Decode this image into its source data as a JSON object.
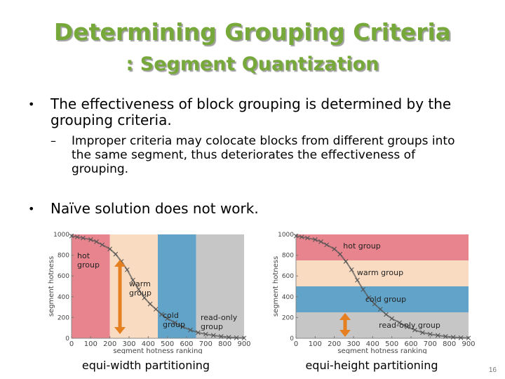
{
  "slide": {
    "title_line1": "Determining Grouping Criteria",
    "title_line2": ": Segment Quantization",
    "bullets": [
      {
        "text": "The effectiveness of block grouping is determined by the grouping criteria.",
        "sub": "Improper criteria may colocate blocks from different groups into the same segment, thus deteriorates the effectiveness of grouping."
      },
      {
        "text": "Naïve solution does not work."
      }
    ],
    "bullet_mark": "•",
    "sub_mark": "–",
    "page_number": "16"
  },
  "chart_data": [
    {
      "type": "scatter",
      "caption": "equi-width partitioning",
      "xlabel": "segment hotness ranking",
      "ylabel": "segment hotness",
      "xlim": [
        0,
        900
      ],
      "ylim": [
        0,
        1000
      ],
      "xticks": [
        0,
        100,
        200,
        300,
        400,
        500,
        600,
        700,
        800,
        900
      ],
      "yticks": [
        0,
        200,
        400,
        600,
        800,
        1000
      ],
      "regions": [
        {
          "name": "hot group",
          "x": [
            0,
            200
          ],
          "color": "#e77d87"
        },
        {
          "name": "warm group",
          "x": [
            200,
            450
          ],
          "color": "#f8d9bd"
        },
        {
          "name": "cold group",
          "x": [
            450,
            650
          ],
          "color": "#5a9fc6"
        },
        {
          "name": "read-only group",
          "x": [
            650,
            900
          ],
          "color": "#c3c3c3"
        }
      ],
      "labels": [
        "hot group",
        "warm group",
        "cold group",
        "read-only group"
      ]
    },
    {
      "type": "scatter",
      "caption": "equi-height partitioning",
      "xlabel": "segment hotness ranking",
      "ylabel": "segment hotness",
      "xlim": [
        0,
        900
      ],
      "ylim": [
        0,
        1000
      ],
      "xticks": [
        0,
        100,
        200,
        300,
        400,
        500,
        600,
        700,
        800,
        900
      ],
      "yticks": [
        0,
        200,
        400,
        600,
        800,
        1000
      ],
      "regions": [
        {
          "name": "hot group",
          "y": [
            750,
            1000
          ],
          "color": "#e77d87"
        },
        {
          "name": "warm group",
          "y": [
            500,
            750
          ],
          "color": "#f8d9bd"
        },
        {
          "name": "cold group",
          "y": [
            250,
            500
          ],
          "color": "#5a9fc6"
        },
        {
          "name": "read-only group",
          "y": [
            0,
            250
          ],
          "color": "#c3c3c3"
        }
      ],
      "labels": [
        "hot group",
        "warm group",
        "cold group",
        "read-only group"
      ]
    }
  ],
  "series_curve": {
    "x": [
      0,
      30,
      60,
      100,
      130,
      160,
      200,
      230,
      260,
      290,
      320,
      350,
      380,
      410,
      440,
      470,
      500,
      540,
      580,
      620,
      660,
      700,
      740,
      780,
      820,
      860,
      900
    ],
    "y": [
      985,
      975,
      965,
      950,
      930,
      900,
      860,
      810,
      740,
      660,
      560,
      470,
      390,
      330,
      280,
      230,
      190,
      150,
      110,
      80,
      55,
      40,
      28,
      18,
      10,
      5,
      2
    ]
  },
  "colors": {
    "title": "#77a83a",
    "arrow": "#e57f1f",
    "marker": "#505050"
  }
}
